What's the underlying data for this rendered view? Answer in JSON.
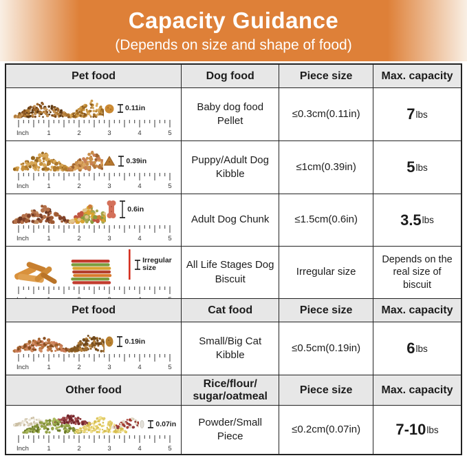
{
  "banner": {
    "title": "Capacity Guidance",
    "subtitle": "(Depends on size and shape of food)"
  },
  "headers": [
    {
      "c1": "Pet food",
      "c2": "Dog food",
      "c3": "Piece size",
      "c4": "Max. capacity"
    },
    {
      "c1": "Pet food",
      "c2": "Cat food",
      "c3": "Piece size",
      "c4": "Max. capacity"
    },
    {
      "c1": "Other food",
      "c2": "Rice/flour/\nsugar/oatmeal",
      "c3": "Piece size",
      "c4": "Max. capacity"
    }
  ],
  "rows": [
    {
      "illustration": "brown-pellet-piles-with-ruler",
      "size_label": "0.11in",
      "food": "Baby dog food Pellet",
      "piece": "≤0.3cm(0.11in)",
      "capacity_value": "7",
      "capacity_unit": "lbs"
    },
    {
      "illustration": "kibble-piles-with-ruler",
      "size_label": "0.39in",
      "food": "Puppy/Adult Dog Kibble",
      "piece": "≤1cm(0.39in)",
      "capacity_value": "5",
      "capacity_unit": "lbs"
    },
    {
      "illustration": "chunk-piles-bone-with-ruler",
      "size_label": "0.6in",
      "food": "Adult Dog Chunk",
      "piece": "≤1.5cm(0.6in)",
      "capacity_value": "3.5",
      "capacity_unit": "lbs"
    },
    {
      "illustration": "jerky-and-biscuit-sticks-ruler",
      "size_label": "Irregular size",
      "food": "All Life Stages Dog Biscuit",
      "piece": "Irregular size",
      "capacity_note": "Depends on the real size of biscuit"
    },
    {
      "illustration": "cat-kibble-piles-with-ruler",
      "size_label": "0.19in",
      "food": "Small/Big Cat Kibble",
      "piece": "≤0.5cm(0.19in)",
      "capacity_value": "6",
      "capacity_unit": "lbs"
    },
    {
      "illustration": "grain-powder-piles-with-ruler",
      "size_label": "0.07in",
      "food": "Powder/Small Piece",
      "piece": "≤0.2cm(0.07in)",
      "capacity_value": "7-10",
      "capacity_unit": "lbs"
    }
  ],
  "ruler": {
    "unit": "Inch",
    "marks": [
      "1",
      "2",
      "3",
      "4",
      "5"
    ]
  },
  "colors": {
    "banner_orange": "#de8038",
    "banner_edge": "#f9efe4",
    "header_bg": "#e7e7e7",
    "border": "#222222"
  },
  "chart_data": {
    "type": "table",
    "title": "Capacity Guidance",
    "subtitle": "(Depends on size and shape of food)",
    "sections": [
      {
        "columns": [
          "Pet food",
          "Dog food",
          "Piece size",
          "Max. capacity"
        ],
        "rows": [
          [
            "Baby dog food Pellet",
            "≤0.3cm(0.11in)",
            "7lbs"
          ],
          [
            "Puppy/Adult Dog Kibble",
            "≤1cm(0.39in)",
            "5lbs"
          ],
          [
            "Adult Dog Chunk",
            "≤1.5cm(0.6in)",
            "3.5lbs"
          ],
          [
            "All Life Stages Dog Biscuit",
            "Irregular size",
            "Depends on the real size of biscuit"
          ]
        ]
      },
      {
        "columns": [
          "Pet food",
          "Cat food",
          "Piece size",
          "Max. capacity"
        ],
        "rows": [
          [
            "Small/Big Cat Kibble",
            "≤0.5cm(0.19in)",
            "6lbs"
          ]
        ]
      },
      {
        "columns": [
          "Other food",
          "Rice/flour/sugar/oatmeal",
          "Piece size",
          "Max. capacity"
        ],
        "rows": [
          [
            "Powder/Small Piece",
            "≤0.2cm(0.07in)",
            "7-10lbs"
          ]
        ]
      }
    ]
  }
}
